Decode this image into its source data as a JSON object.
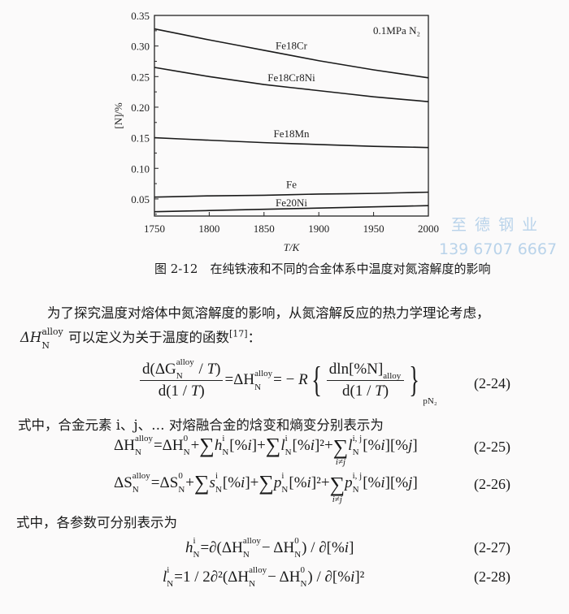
{
  "chart_data": {
    "type": "line",
    "xlabel": "T/K",
    "ylabel": "[N]/%",
    "xlim": [
      1750,
      2000
    ],
    "ylim": [
      0.022,
      0.35
    ],
    "xticks": [
      1750,
      1800,
      1850,
      1900,
      1950,
      2000
    ],
    "yticks": [
      "0.05",
      "0.10",
      "0.15",
      "0.20",
      "0.25",
      "0.30",
      "0.35"
    ],
    "annotation": "0.1MPa N₂",
    "grid": false,
    "x": [
      1750,
      1800,
      1850,
      1900,
      1950,
      2000
    ],
    "series": [
      {
        "name": "Fe18Cr",
        "values": [
          0.328,
          0.31,
          0.293,
          0.276,
          0.261,
          0.248
        ]
      },
      {
        "name": "Fe18Cr8Ni",
        "values": [
          0.265,
          0.25,
          0.237,
          0.227,
          0.217,
          0.209
        ]
      },
      {
        "name": "Fe18Mn",
        "values": [
          0.15,
          0.146,
          0.142,
          0.139,
          0.136,
          0.134
        ]
      },
      {
        "name": "Fe",
        "values": [
          0.053,
          0.055,
          0.056,
          0.058,
          0.059,
          0.061
        ]
      },
      {
        "name": "Fe20Ni",
        "values": [
          0.029,
          0.031,
          0.033,
          0.035,
          0.037,
          0.039
        ]
      }
    ],
    "line_color": "#1a1a1a"
  },
  "caption": "图 2-12　在纯铁液和不同的合金体系中温度对氮溶解度的影响",
  "watermark": {
    "name": "至 德 钢 业",
    "phone": "139 6707 6667",
    "color": "#b9d3ea"
  },
  "text": {
    "p1": "为了探究温度对熔体中氮溶解度的影响，从氮溶解反应的热力学理论考虑，",
    "p2_pre": "ΔH",
    "p2_sub": "N",
    "p2_sup": "alloy",
    "p2": " 可以定义为关于温度的函数",
    "p2_ref": "[17]",
    "p2_end": "：",
    "p3": "式中，合金元素 i、j、… 对熔融合金的焓变和熵变分别表示为",
    "p4": "式中，各参数可分别表示为"
  },
  "eq24": {
    "num_tokens": [
      {
        "t": "d(ΔG"
      },
      {
        "sup": "alloy",
        "sub": "N"
      },
      {
        "t": " / "
      },
      {
        "t": "T",
        "it": true
      },
      {
        "t": ")"
      }
    ],
    "den_tokens": [
      {
        "t": "d(1 / "
      },
      {
        "t": "T",
        "it": true
      },
      {
        "t": ")"
      }
    ],
    "mid_tokens": [
      {
        "t": "=ΔH"
      },
      {
        "sup": "alloy",
        "sub": "N"
      },
      {
        "t": "= − "
      },
      {
        "t": "R",
        "it": true
      }
    ],
    "rnum_tokens": [
      {
        "t": "dln[%N]"
      },
      {
        "sub": "alloy"
      }
    ],
    "rden_tokens": [
      {
        "t": "d(1 / "
      },
      {
        "t": "T",
        "it": true
      },
      {
        "t": ")"
      }
    ],
    "tail_tokens": [
      {
        "sub": "pN₂"
      }
    ],
    "number": "(2-24)"
  },
  "equations": [
    {
      "number": "(2-25)",
      "tokens": [
        {
          "t": "ΔH"
        },
        {
          "sup": "alloy",
          "sub": "N"
        },
        {
          "t": "=ΔH"
        },
        {
          "sup": "0",
          "sub": "N"
        },
        {
          "t": "+"
        },
        {
          "sig": "∑"
        },
        {
          "t": "h",
          "it": true
        },
        {
          "sup": "i",
          "sub": "N"
        },
        {
          "t": "[%"
        },
        {
          "t": "i",
          "it": true
        },
        {
          "t": "]+"
        },
        {
          "sig": "∑"
        },
        {
          "t": "l",
          "it": true
        },
        {
          "sup": "i",
          "sub": "N"
        },
        {
          "t": "[%"
        },
        {
          "t": "i",
          "it": true
        },
        {
          "t": "]²+"
        },
        {
          "sig": "∑",
          "under": "i≠j"
        },
        {
          "t": "l",
          "it": true
        },
        {
          "sup": "i, j",
          "sub": "N"
        },
        {
          "t": "[%"
        },
        {
          "t": "i",
          "it": true
        },
        {
          "t": "][%"
        },
        {
          "t": "j",
          "it": true
        },
        {
          "t": "]"
        }
      ]
    },
    {
      "number": "(2-26)",
      "tokens": [
        {
          "t": "ΔS"
        },
        {
          "sup": "alloy",
          "sub": "N"
        },
        {
          "t": "=ΔS"
        },
        {
          "sup": "0",
          "sub": "N"
        },
        {
          "t": "+"
        },
        {
          "sig": "∑"
        },
        {
          "t": "s",
          "it": true
        },
        {
          "sup": "i",
          "sub": "N"
        },
        {
          "t": "[%"
        },
        {
          "t": "i",
          "it": true
        },
        {
          "t": "]+"
        },
        {
          "sig": "∑"
        },
        {
          "t": "p",
          "it": true
        },
        {
          "sup": "i",
          "sub": "N"
        },
        {
          "t": "[%"
        },
        {
          "t": "i",
          "it": true
        },
        {
          "t": "]²+"
        },
        {
          "sig": "∑",
          "under": "i≠j"
        },
        {
          "t": "p",
          "it": true
        },
        {
          "sup": "i, j",
          "sub": "N"
        },
        {
          "t": "[%"
        },
        {
          "t": "i",
          "it": true
        },
        {
          "t": "][%"
        },
        {
          "t": "j",
          "it": true
        },
        {
          "t": "]"
        }
      ]
    },
    {
      "number": "(2-27)",
      "tokens": [
        {
          "t": "h",
          "it": true
        },
        {
          "sup": "i",
          "sub": "N"
        },
        {
          "t": "=∂(ΔH"
        },
        {
          "sup": "alloy",
          "sub": "N"
        },
        {
          "t": " − ΔH"
        },
        {
          "sup": "0",
          "sub": "N"
        },
        {
          "t": ") / ∂[%"
        },
        {
          "t": "i",
          "it": true
        },
        {
          "t": "]"
        }
      ]
    },
    {
      "number": "(2-28)",
      "tokens": [
        {
          "t": "l",
          "it": true
        },
        {
          "sup": "i",
          "sub": "N"
        },
        {
          "t": "=1 / 2∂²(ΔH"
        },
        {
          "sup": "alloy",
          "sub": "N"
        },
        {
          "t": " − ΔH"
        },
        {
          "sup": "0",
          "sub": "N"
        },
        {
          "t": ") / ∂[%"
        },
        {
          "t": "i",
          "it": true
        },
        {
          "t": "]²"
        }
      ]
    }
  ]
}
